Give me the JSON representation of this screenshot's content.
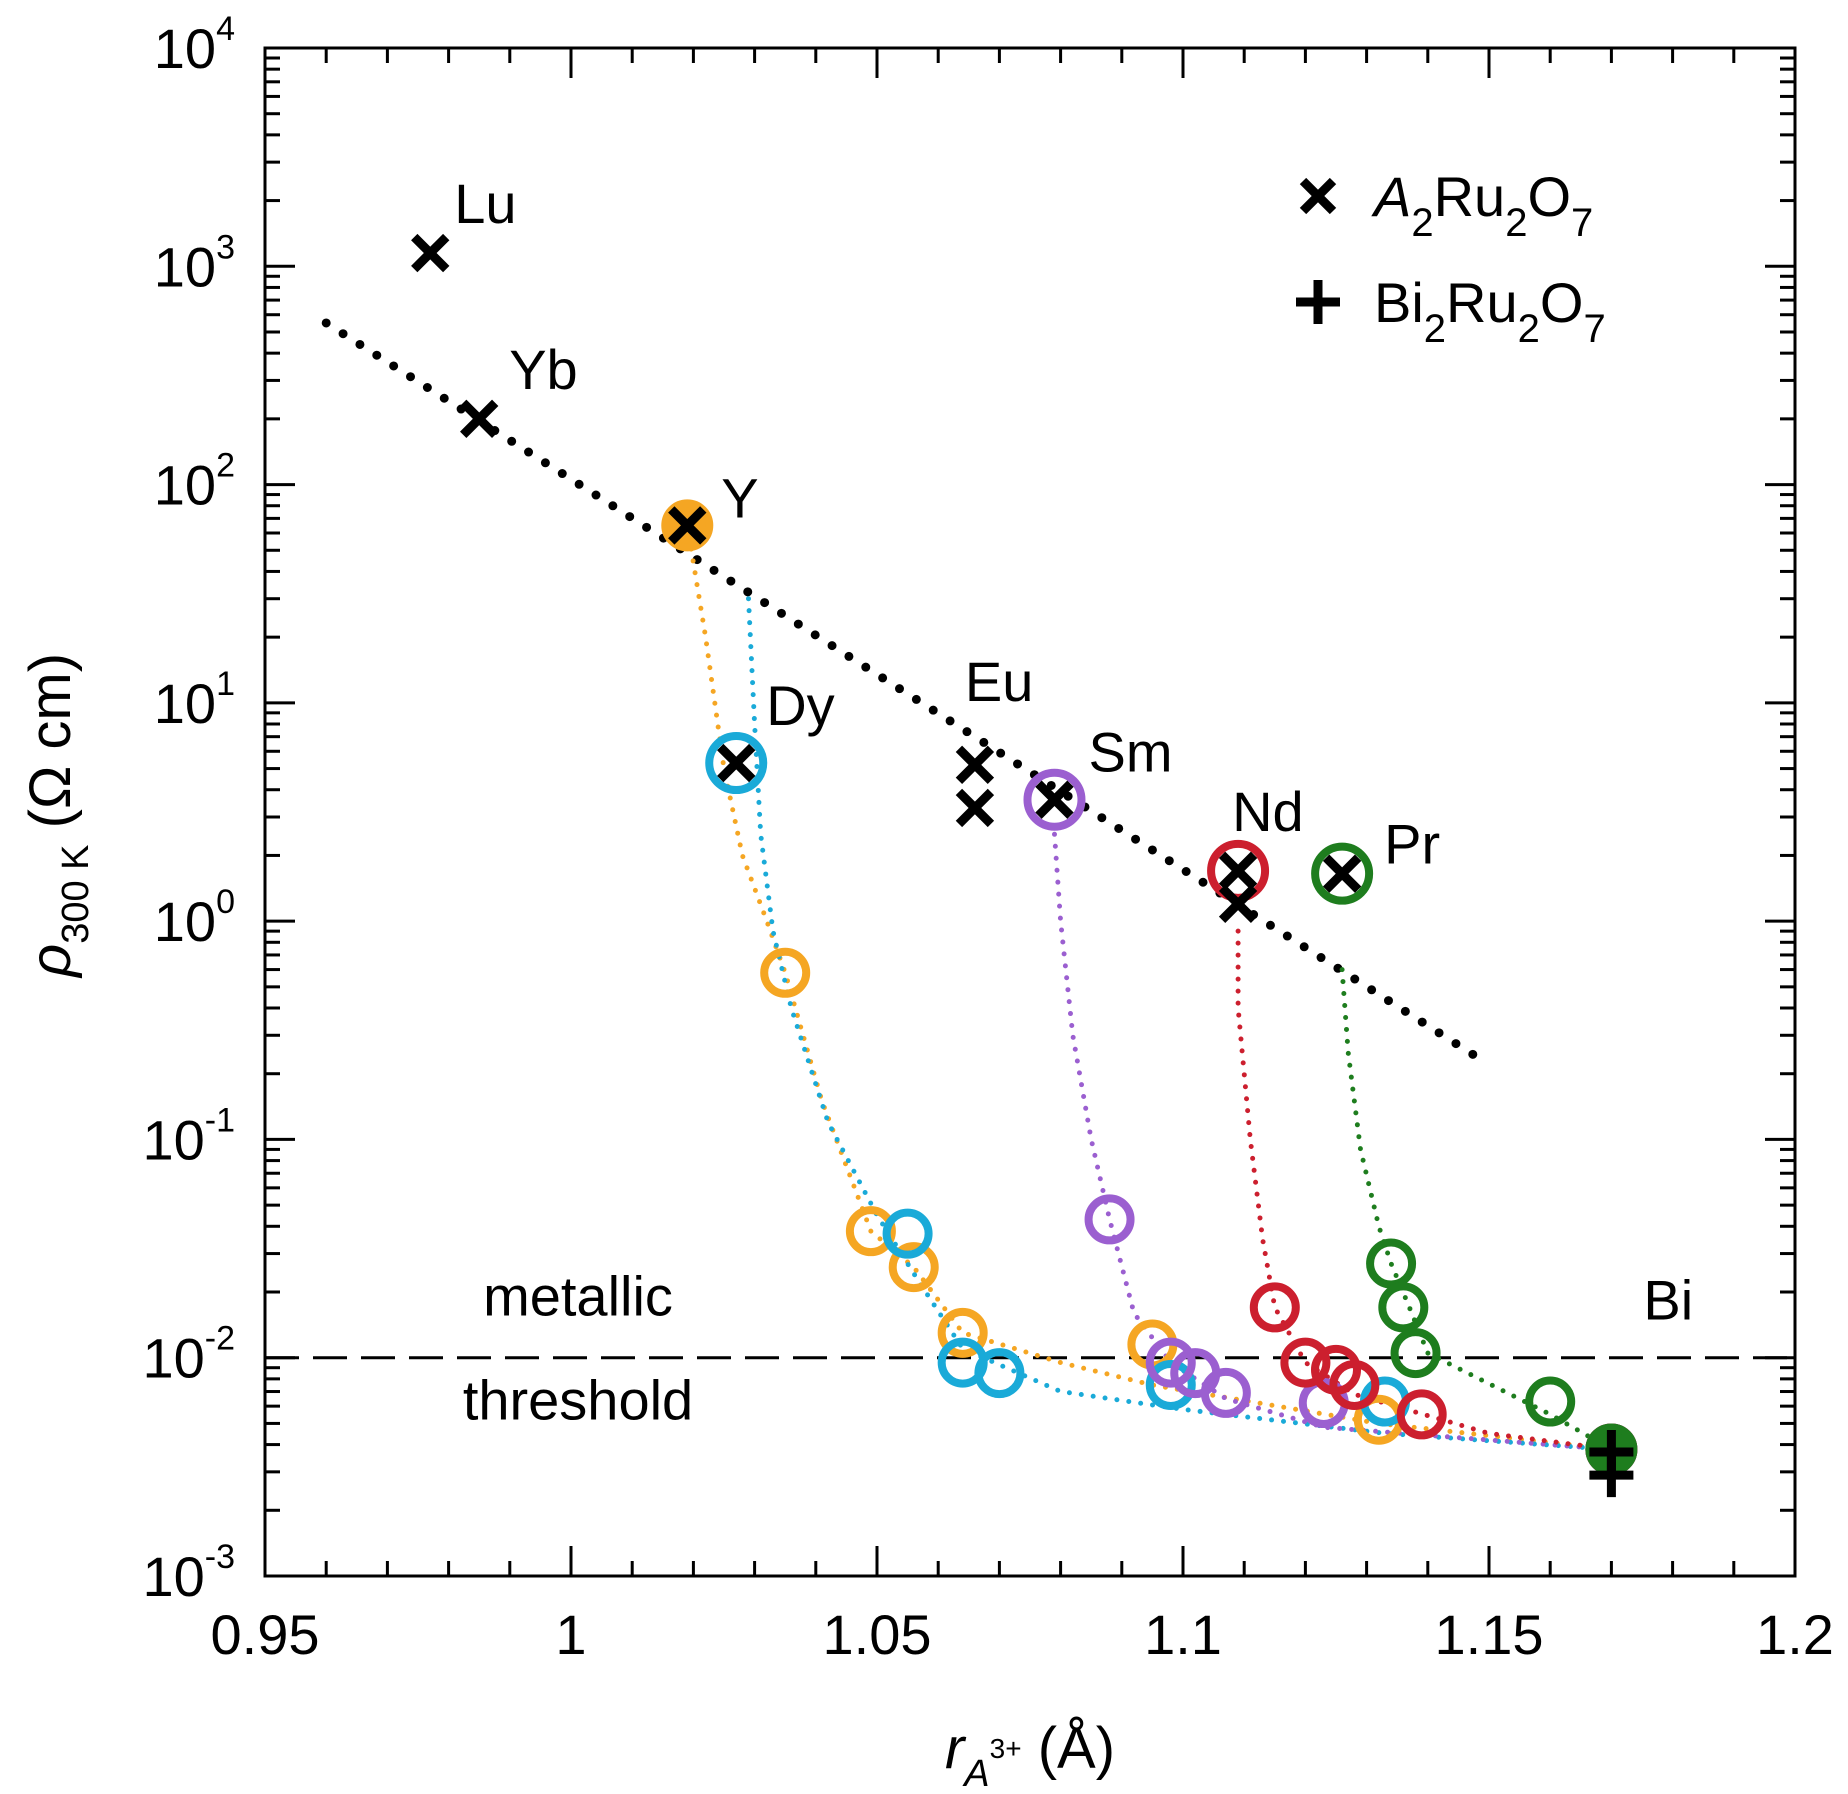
{
  "chart_data": {
    "type": "scatter",
    "x_scale": "linear",
    "y_scale": "log",
    "xlim": [
      0.95,
      1.2
    ],
    "ylim": [
      0.001,
      10000
    ],
    "x_ticks": [
      {
        "value": 0.95,
        "label": "0.95"
      },
      {
        "value": 1.0,
        "label": "1"
      },
      {
        "value": 1.05,
        "label": "1.05"
      },
      {
        "value": 1.1,
        "label": "1.1"
      },
      {
        "value": 1.15,
        "label": "1.15"
      },
      {
        "value": 1.2,
        "label": "1.2"
      }
    ],
    "y_ticks": [
      {
        "value": 0.001,
        "base": "10",
        "exp": "-3"
      },
      {
        "value": 0.01,
        "base": "10",
        "exp": "-2"
      },
      {
        "value": 0.1,
        "base": "10",
        "exp": "-1"
      },
      {
        "value": 1,
        "base": "10",
        "exp": "0"
      },
      {
        "value": 10,
        "base": "10",
        "exp": "1"
      },
      {
        "value": 100,
        "base": "10",
        "exp": "2"
      },
      {
        "value": 1000,
        "base": "10",
        "exp": "3"
      },
      {
        "value": 10000,
        "base": "10",
        "exp": "4"
      }
    ],
    "xlabel": {
      "main": "r",
      "sub": "A",
      "sup": "3+",
      "unit": "(Å)"
    },
    "ylabel": {
      "main": "ρ",
      "sub": "300 K",
      "unit": "(Ω cm)"
    },
    "legend": {
      "position": "top-right",
      "entries": [
        {
          "marker": "x",
          "italic": "A",
          "sub1": "2",
          "mid": "Ru",
          "sub2": "2",
          "end": "O",
          "sub3": "7"
        },
        {
          "marker": "plus",
          "italic": "",
          "pre": "Bi",
          "sub1": "2",
          "mid": "Ru",
          "sub2": "2",
          "end": "O",
          "sub3": "7"
        }
      ]
    },
    "trend_line": {
      "x": [
        0.96,
        1.15
      ],
      "y": [
        550,
        0.22
      ],
      "style": "dotted",
      "color": "#000000"
    },
    "threshold": {
      "y": 0.01,
      "label_line1": "metallic",
      "label_line2": "threshold",
      "style": "dashed"
    },
    "pure_compounds": [
      {
        "element": "Lu",
        "x": 0.977,
        "y": 1150
      },
      {
        "element": "Yb",
        "x": 0.985,
        "y": 200
      },
      {
        "element": "Y",
        "x": 1.019,
        "y": 65
      },
      {
        "element": "Dy",
        "x": 1.027,
        "y": 5.3
      },
      {
        "element": "Eu",
        "x": 1.066,
        "y": 5.2
      },
      {
        "element": "Eu",
        "x": 1.066,
        "y": 3.3
      },
      {
        "element": "Sm",
        "x": 1.079,
        "y": 3.6
      },
      {
        "element": "Nd",
        "x": 1.109,
        "y": 1.7
      },
      {
        "element": "Nd",
        "x": 1.109,
        "y": 1.2
      },
      {
        "element": "Pr",
        "x": 1.126,
        "y": 1.65
      }
    ],
    "element_labels": [
      {
        "text": "Lu",
        "x": 0.977,
        "y": 1150
      },
      {
        "text": "Yb",
        "x": 0.985,
        "y": 200
      },
      {
        "text": "Y",
        "x": 1.019,
        "y": 65
      },
      {
        "text": "Dy",
        "x": 1.027,
        "y": 5.3
      },
      {
        "text": "Eu",
        "x": 1.066,
        "y": 5.2
      },
      {
        "text": "Sm",
        "x": 1.079,
        "y": 3.6
      },
      {
        "text": "Nd",
        "x": 1.109,
        "y": 1.7
      },
      {
        "text": "Pr",
        "x": 1.126,
        "y": 1.65
      },
      {
        "text": "Bi",
        "x": 1.17,
        "y": 0.0038
      }
    ],
    "bismuth": [
      {
        "x": 1.17,
        "y": 0.0037
      },
      {
        "x": 1.17,
        "y": 0.0029
      }
    ],
    "series": [
      {
        "name": "Y-Bi",
        "color": "#f5a623",
        "points": [
          {
            "x": 1.019,
            "y": 65
          },
          {
            "x": 1.035,
            "y": 0.58
          },
          {
            "x": 1.049,
            "y": 0.038
          },
          {
            "x": 1.056,
            "y": 0.026
          },
          {
            "x": 1.064,
            "y": 0.013
          },
          {
            "x": 1.095,
            "y": 0.0115
          },
          {
            "x": 1.132,
            "y": 0.0052
          },
          {
            "x": 1.17,
            "y": 0.0038
          }
        ]
      },
      {
        "name": "Dy-Bi",
        "color": "#1aaad8",
        "points": [
          {
            "x": 1.027,
            "y": 5.3
          },
          {
            "x": 1.055,
            "y": 0.037
          },
          {
            "x": 1.064,
            "y": 0.0095
          },
          {
            "x": 1.07,
            "y": 0.0085
          },
          {
            "x": 1.098,
            "y": 0.0075
          },
          {
            "x": 1.133,
            "y": 0.0063
          },
          {
            "x": 1.17,
            "y": 0.0038
          }
        ]
      },
      {
        "name": "Sm-Bi",
        "color": "#9b5fd0",
        "points": [
          {
            "x": 1.079,
            "y": 3.6
          },
          {
            "x": 1.088,
            "y": 0.043
          },
          {
            "x": 1.098,
            "y": 0.0095
          },
          {
            "x": 1.102,
            "y": 0.0085
          },
          {
            "x": 1.107,
            "y": 0.0069
          },
          {
            "x": 1.123,
            "y": 0.0062
          },
          {
            "x": 1.17,
            "y": 0.0038
          }
        ]
      },
      {
        "name": "Nd-Bi",
        "color": "#cc1f2e",
        "points": [
          {
            "x": 1.109,
            "y": 1.7
          },
          {
            "x": 1.115,
            "y": 0.017
          },
          {
            "x": 1.12,
            "y": 0.0095
          },
          {
            "x": 1.125,
            "y": 0.0088
          },
          {
            "x": 1.128,
            "y": 0.0075
          },
          {
            "x": 1.139,
            "y": 0.0055
          },
          {
            "x": 1.17,
            "y": 0.0038
          }
        ]
      },
      {
        "name": "Pr-Bi",
        "color": "#1e7d1e",
        "points": [
          {
            "x": 1.126,
            "y": 1.65
          },
          {
            "x": 1.134,
            "y": 0.027
          },
          {
            "x": 1.136,
            "y": 0.017
          },
          {
            "x": 1.138,
            "y": 0.0105
          },
          {
            "x": 1.16,
            "y": 0.0063
          },
          {
            "x": 1.17,
            "y": 0.0038
          }
        ]
      }
    ],
    "dotted_paths": [
      {
        "name": "Y-Bi",
        "color": "#f5a623",
        "x": [
          1.019,
          1.022,
          1.025,
          1.028,
          1.032,
          1.035,
          1.041,
          1.049,
          1.056,
          1.064,
          1.08,
          1.095,
          1.132,
          1.17
        ],
        "y": [
          65,
          20,
          5,
          2,
          1,
          0.58,
          0.15,
          0.038,
          0.026,
          0.013,
          0.0095,
          0.0075,
          0.005,
          0.0038
        ]
      },
      {
        "name": "Dy-Bi",
        "color": "#1aaad8",
        "x": [
          1.029,
          1.03,
          1.031,
          1.033,
          1.036,
          1.042,
          1.05,
          1.057,
          1.064,
          1.08,
          1.1,
          1.133,
          1.17
        ],
        "y": [
          30,
          8,
          2.5,
          0.9,
          0.4,
          0.12,
          0.045,
          0.022,
          0.011,
          0.007,
          0.0058,
          0.0045,
          0.0038
        ]
      },
      {
        "name": "Sm-Bi",
        "color": "#9b5fd0",
        "x": [
          1.079,
          1.08,
          1.082,
          1.085,
          1.088,
          1.092,
          1.098,
          1.107,
          1.123,
          1.17
        ],
        "y": [
          2.5,
          1,
          0.3,
          0.1,
          0.043,
          0.016,
          0.0095,
          0.0065,
          0.0048,
          0.0038
        ]
      },
      {
        "name": "Nd-Bi",
        "color": "#cc1f2e",
        "x": [
          1.109,
          1.109,
          1.111,
          1.113,
          1.115,
          1.12,
          1.128,
          1.15,
          1.17
        ],
        "y": [
          0.9,
          0.4,
          0.1,
          0.035,
          0.017,
          0.0095,
          0.0068,
          0.0045,
          0.0038
        ]
      },
      {
        "name": "Pr-Bi",
        "color": "#1e7d1e",
        "x": [
          1.126,
          1.127,
          1.129,
          1.132,
          1.134,
          1.137,
          1.14,
          1.16,
          1.17
        ],
        "y": [
          0.6,
          0.25,
          0.09,
          0.04,
          0.027,
          0.017,
          0.0105,
          0.0055,
          0.0038
        ]
      }
    ]
  }
}
